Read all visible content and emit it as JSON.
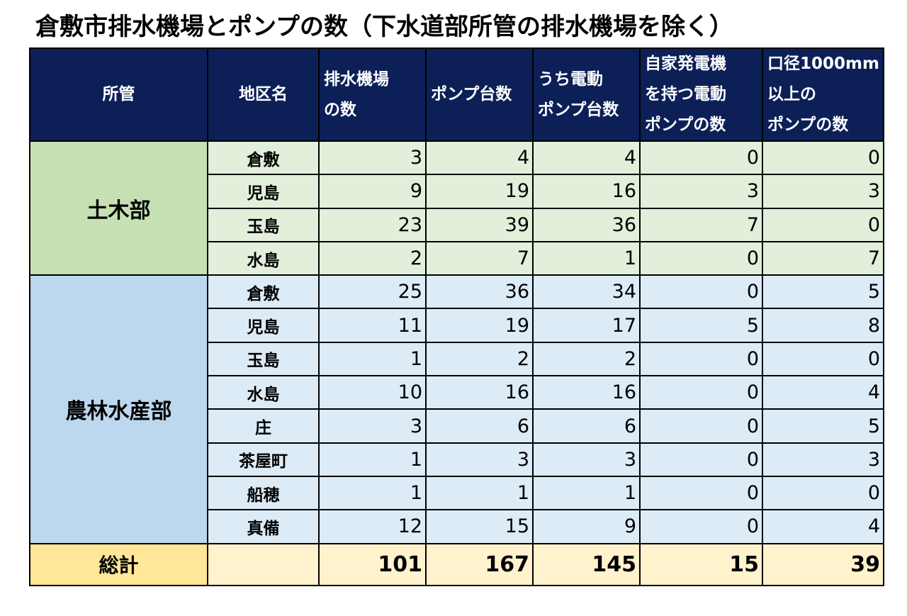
{
  "title": "倉敷市排水機場とポンプの数（下水道部所管の排水機場を除く）",
  "headers": {
    "dept": "所管",
    "district": "地区名",
    "stations": [
      "排水機場",
      "の数"
    ],
    "pumps": [
      "ポンプ台数"
    ],
    "electric": [
      "うち電動",
      "ポンプ台数"
    ],
    "generator": [
      "自家発電機",
      "を持つ電動",
      "ポンプの数"
    ],
    "large": [
      "口径1000mm",
      "以上の",
      "ポンプの数"
    ]
  },
  "groups": [
    {
      "dept": "土木部",
      "rows": [
        {
          "district": "倉敷",
          "stations": "3",
          "pumps": "4",
          "electric": "4",
          "generator": "0",
          "large": "0"
        },
        {
          "district": "児島",
          "stations": "9",
          "pumps": "19",
          "electric": "16",
          "generator": "3",
          "large": "3"
        },
        {
          "district": "玉島",
          "stations": "23",
          "pumps": "39",
          "electric": "36",
          "generator": "7",
          "large": "0"
        },
        {
          "district": "水島",
          "stations": "2",
          "pumps": "7",
          "electric": "1",
          "generator": "0",
          "large": "7"
        }
      ]
    },
    {
      "dept": "農林水産部",
      "rows": [
        {
          "district": "倉敷",
          "stations": "25",
          "pumps": "36",
          "electric": "34",
          "generator": "0",
          "large": "5"
        },
        {
          "district": "児島",
          "stations": "11",
          "pumps": "19",
          "electric": "17",
          "generator": "5",
          "large": "8"
        },
        {
          "district": "玉島",
          "stations": "1",
          "pumps": "2",
          "electric": "2",
          "generator": "0",
          "large": "0"
        },
        {
          "district": "水島",
          "stations": "10",
          "pumps": "16",
          "electric": "16",
          "generator": "0",
          "large": "4"
        },
        {
          "district": "庄",
          "stations": "3",
          "pumps": "6",
          "electric": "6",
          "generator": "0",
          "large": "5"
        },
        {
          "district": "茶屋町",
          "stations": "1",
          "pumps": "3",
          "electric": "3",
          "generator": "0",
          "large": "3"
        },
        {
          "district": "船穂",
          "stations": "1",
          "pumps": "1",
          "electric": "1",
          "generator": "0",
          "large": "0"
        },
        {
          "district": "真備",
          "stations": "12",
          "pumps": "15",
          "electric": "9",
          "generator": "0",
          "large": "4"
        }
      ]
    }
  ],
  "total": {
    "label": "総計",
    "stations": "101",
    "pumps": "167",
    "electric": "145",
    "generator": "15",
    "large": "39"
  },
  "colors": {
    "header_bg": "#0c2057",
    "dept1_bg": "#c6e0b4",
    "dept1_rows_bg": "#e2efda",
    "dept2_bg": "#bdd7ee",
    "dept2_rows_bg": "#ddebf7",
    "total_label_bg": "#ffe699",
    "total_bg": "#fff2cc"
  }
}
